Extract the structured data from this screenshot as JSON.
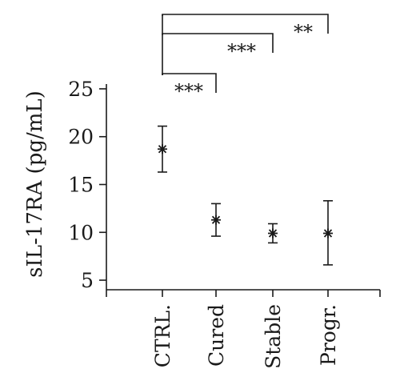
{
  "chart_data": {
    "type": "scatter",
    "title": "",
    "xlabel": "",
    "ylabel": "sIL-17RA (pg/mL)",
    "ylim": [
      4,
      25.5
    ],
    "yticks": [
      5,
      10,
      15,
      20,
      25
    ],
    "categories": [
      "CTRL.",
      "Cured",
      "Stable",
      "Progr."
    ],
    "series": [
      {
        "values": [
          18.7,
          11.3,
          9.9,
          9.9
        ],
        "lower": [
          16.3,
          9.6,
          8.9,
          6.6
        ],
        "upper": [
          21.1,
          13.0,
          10.9,
          13.3
        ]
      }
    ],
    "significance": [
      {
        "from": "CTRL.",
        "to": "Cured",
        "label": "***"
      },
      {
        "from": "CTRL.",
        "to": "Stable",
        "label": "***"
      },
      {
        "from": "CTRL.",
        "to": "Progr.",
        "label": "**"
      }
    ],
    "grid": false,
    "legend": "none"
  }
}
